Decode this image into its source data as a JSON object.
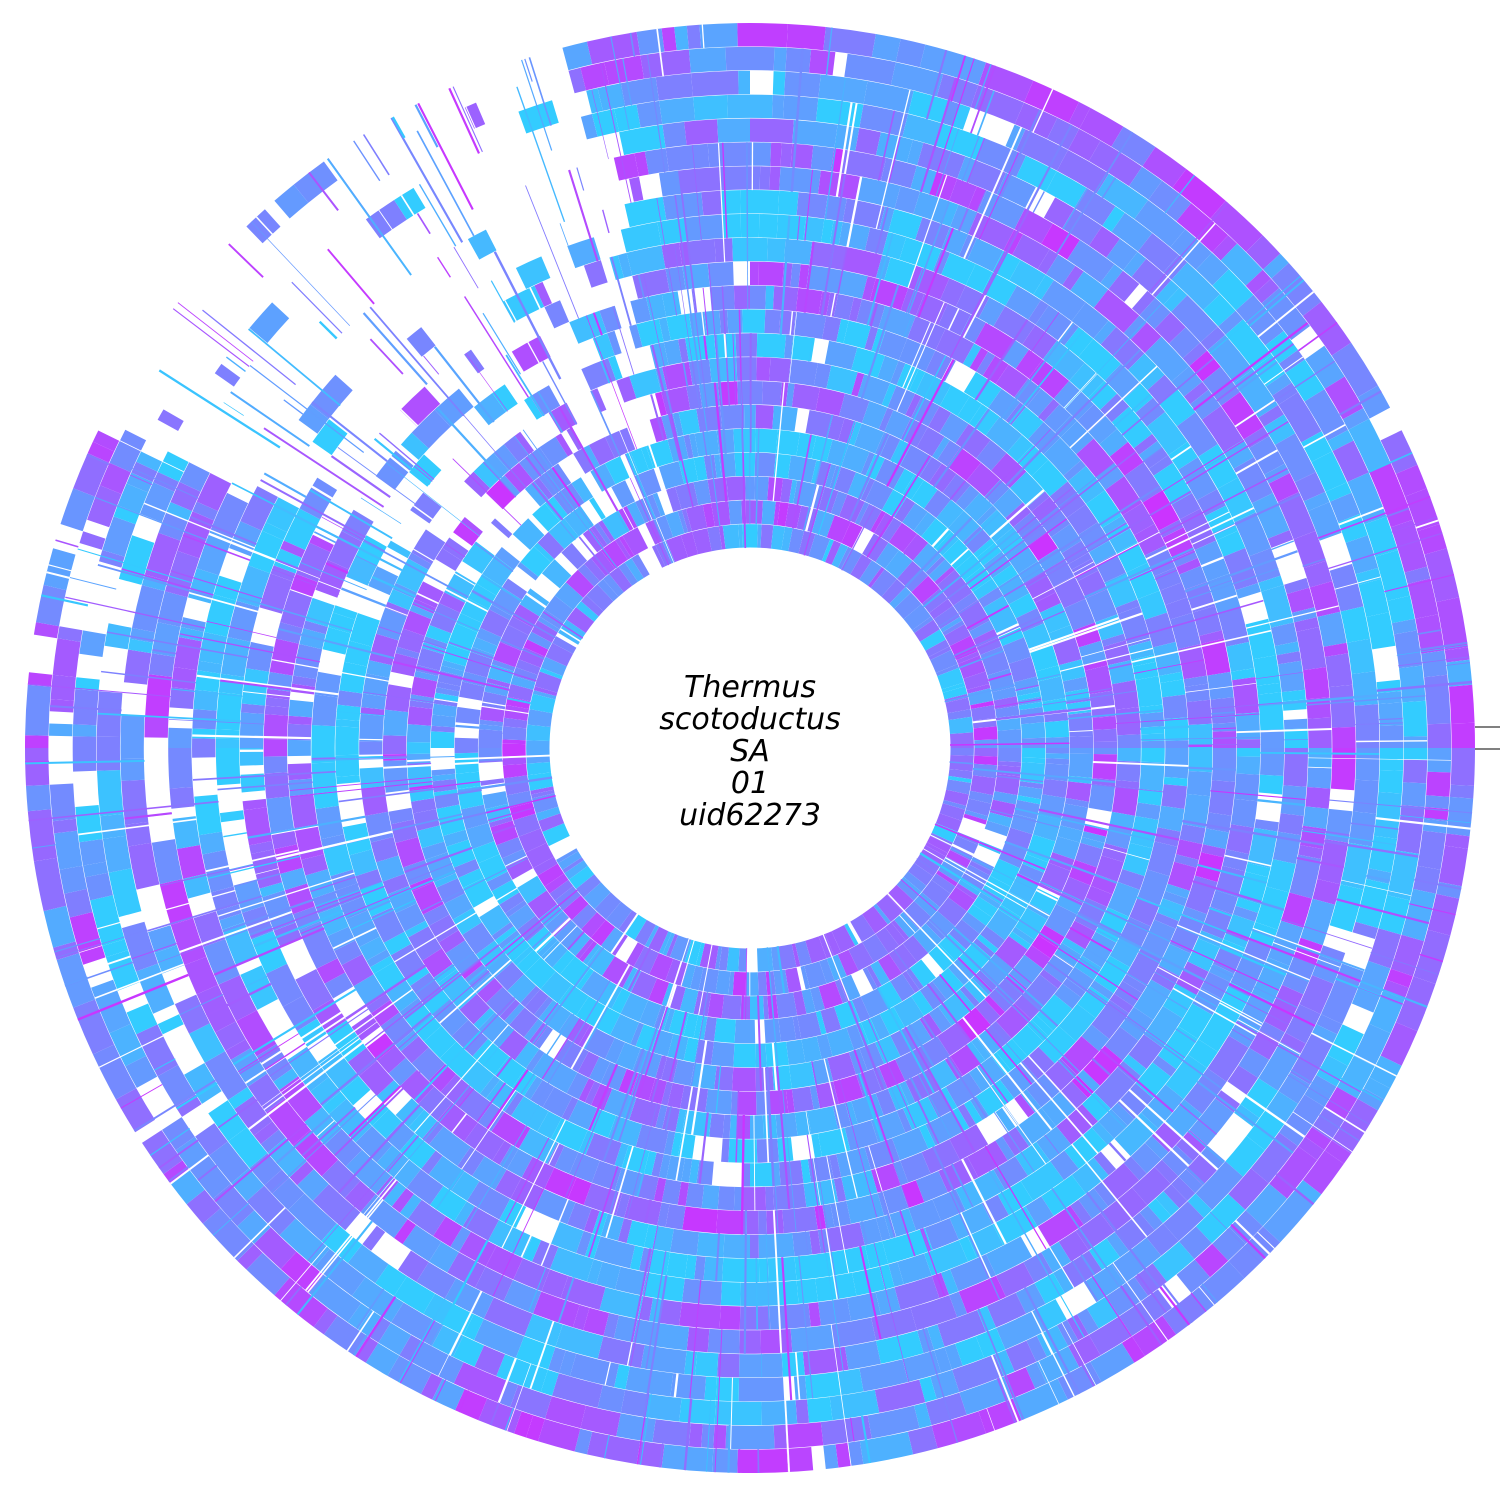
{
  "figure": {
    "type": "circular-genome-comparison-ring",
    "center_label_lines": [
      "Thermus",
      "scotoductus",
      "SA",
      "01",
      "uid62273"
    ],
    "ring_count": 22,
    "color_scale": {
      "low": "#33ccff",
      "mid": "#7f7fff",
      "high": "#cc33ff"
    },
    "background": "#ffffff",
    "start_marker": "horizontal tick at 3 o'clock"
  }
}
